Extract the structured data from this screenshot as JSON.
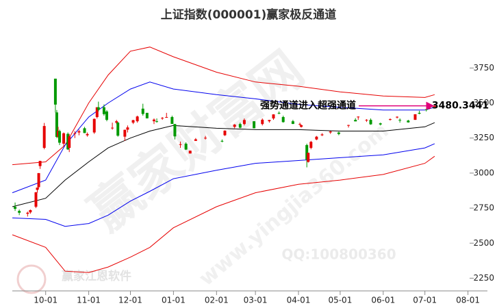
{
  "chart_data": {
    "type": "candlestick",
    "title": "上证指数(000001)赢家极反通道",
    "xlim": [
      "09-07",
      "08-15"
    ],
    "xticks": [
      "10-01",
      "11-01",
      "12-01",
      "01-01",
      "02-01",
      "03-01",
      "04-01",
      "05-01",
      "06-01",
      "07-01",
      "08-01"
    ],
    "ylim": [
      2130,
      4040
    ],
    "yticks": [
      2250,
      2500,
      2750,
      3000,
      3250,
      3500,
      3750
    ],
    "up_color": "#e60000",
    "down_color": "#009900",
    "candles": {
      "x": [
        "09-09",
        "09-12",
        "09-18",
        "09-20",
        "09-24",
        "09-25",
        "09-26",
        "09-27",
        "09-30",
        "10-08",
        "10-09",
        "10-10",
        "10-11",
        "10-14",
        "10-17",
        "10-18",
        "10-22",
        "10-25",
        "10-29",
        "10-31",
        "11-05",
        "11-07",
        "11-08",
        "11-12",
        "11-14",
        "11-18",
        "11-21",
        "11-22",
        "11-27",
        "11-29",
        "12-03",
        "12-06",
        "12-10",
        "12-13",
        "12-18",
        "12-20",
        "12-24",
        "12-27",
        "12-31",
        "01-02",
        "01-06",
        "01-10",
        "01-13",
        "01-17",
        "01-24",
        "02-05",
        "02-07",
        "02-14",
        "02-18",
        "02-21",
        "02-28",
        "03-06",
        "03-11",
        "03-14",
        "03-18",
        "03-21",
        "03-28",
        "04-02",
        "04-03",
        "04-07",
        "04-08",
        "04-10",
        "04-14",
        "04-18",
        "04-24",
        "04-30",
        "05-07",
        "05-12",
        "05-14",
        "05-20",
        "05-23",
        "05-30",
        "06-06",
        "06-11",
        "06-13",
        "06-19",
        "06-24",
        "06-27",
        "07-02",
        "07-04",
        "07-08"
      ],
      "open": [
        2760,
        2730,
        2710,
        2720,
        2760,
        2880,
        2900,
        3050,
        3180,
        3674,
        3433,
        3260,
        3300,
        3210,
        3280,
        3180,
        3280,
        3290,
        3320,
        3270,
        3290,
        3400,
        3470,
        3470,
        3440,
        3320,
        3360,
        3360,
        3260,
        3310,
        3360,
        3370,
        3460,
        3430,
        3370,
        3370,
        3390,
        3400,
        3400,
        3350,
        3205,
        3210,
        3140,
        3230,
        3250,
        3230,
        3270,
        3330,
        3350,
        3350,
        3370,
        3350,
        3370,
        3390,
        3430,
        3400,
        3370,
        3350,
        3330,
        3200,
        3080,
        3180,
        3240,
        3270,
        3290,
        3290,
        3340,
        3380,
        3400,
        3380,
        3380,
        3355,
        3380,
        3400,
        3380,
        3375,
        3380,
        3430,
        3455,
        3460,
        3473
      ],
      "high": [
        2790,
        2740,
        2725,
        2740,
        2865,
        2900,
        3000,
        3088,
        3358,
        3674,
        3450,
        3330,
        3310,
        3290,
        3290,
        3280,
        3300,
        3310,
        3330,
        3290,
        3390,
        3470,
        3510,
        3490,
        3450,
        3360,
        3380,
        3365,
        3310,
        3340,
        3380,
        3410,
        3495,
        3430,
        3390,
        3390,
        3400,
        3430,
        3410,
        3350,
        3225,
        3220,
        3160,
        3250,
        3265,
        3240,
        3305,
        3350,
        3360,
        3390,
        3370,
        3390,
        3380,
        3420,
        3440,
        3410,
        3380,
        3360,
        3345,
        3210,
        3145,
        3230,
        3265,
        3285,
        3300,
        3295,
        3345,
        3392,
        3405,
        3385,
        3390,
        3360,
        3390,
        3405,
        3390,
        3380,
        3420,
        3445,
        3460,
        3475,
        3490
      ],
      "low": [
        2730,
        2700,
        2690,
        2710,
        2750,
        2860,
        2890,
        3030,
        3170,
        3432,
        3250,
        3250,
        3200,
        3190,
        3165,
        3150,
        3250,
        3270,
        3285,
        3260,
        3280,
        3390,
        3440,
        3410,
        3370,
        3310,
        3350,
        3260,
        3230,
        3290,
        3350,
        3360,
        3410,
        3390,
        3350,
        3360,
        3380,
        3395,
        3351,
        3240,
        3180,
        3165,
        3140,
        3230,
        3240,
        3220,
        3265,
        3320,
        3320,
        3340,
        3320,
        3340,
        3360,
        3380,
        3420,
        3360,
        3350,
        3340,
        3325,
        3041,
        3075,
        3170,
        3235,
        3265,
        3280,
        3270,
        3325,
        3370,
        3380,
        3365,
        3345,
        3340,
        3375,
        3390,
        3360,
        3360,
        3380,
        3420,
        3440,
        3455,
        3465
      ],
      "close": [
        2745,
        2717,
        2717,
        2736,
        2863,
        2896,
        3000,
        3087,
        3336,
        3489,
        3258,
        3301,
        3217,
        3284,
        3169,
        3261,
        3285,
        3299,
        3286,
        3279,
        3387,
        3470,
        3452,
        3421,
        3380,
        3324,
        3370,
        3267,
        3309,
        3326,
        3378,
        3404,
        3422,
        3391,
        3382,
        3368,
        3394,
        3400,
        3351,
        3262,
        3206,
        3168,
        3160,
        3241,
        3252,
        3229,
        3303,
        3346,
        3324,
        3379,
        3320,
        3381,
        3379,
        3419,
        3429,
        3364,
        3351,
        3350,
        3342,
        3096,
        3145,
        3223,
        3260,
        3276,
        3297,
        3279,
        3343,
        3369,
        3403,
        3380,
        3348,
        3347,
        3385,
        3402,
        3377,
        3362,
        3420,
        3424,
        3454,
        3473,
        3480
      ]
    },
    "series": [
      {
        "color": "#e60000",
        "x": [
          "09-07",
          "10-01",
          "10-15",
          "11-01",
          "11-15",
          "12-01",
          "12-15",
          "01-01",
          "02-01",
          "03-01",
          "04-01",
          "05-01",
          "06-01",
          "07-01",
          "07-08"
        ],
        "values": [
          3060,
          3080,
          3200,
          3500,
          3700,
          3870,
          3900,
          3830,
          3720,
          3650,
          3620,
          3580,
          3550,
          3540,
          3560
        ]
      },
      {
        "color": "#0000ee",
        "x": [
          "09-07",
          "10-01",
          "10-15",
          "11-01",
          "11-15",
          "12-01",
          "12-15",
          "01-01",
          "02-01",
          "03-01",
          "04-01",
          "05-01",
          "06-01",
          "07-01",
          "07-08"
        ],
        "values": [
          2860,
          2950,
          3200,
          3400,
          3500,
          3600,
          3650,
          3600,
          3560,
          3530,
          3490,
          3470,
          3450,
          3450,
          3470
        ]
      },
      {
        "color": "#000000",
        "x": [
          "09-07",
          "10-01",
          "10-15",
          "11-01",
          "11-15",
          "12-01",
          "12-15",
          "01-01",
          "02-01",
          "03-01",
          "04-01",
          "05-01",
          "06-01",
          "07-01",
          "07-08"
        ],
        "values": [
          2760,
          2820,
          2950,
          3080,
          3180,
          3250,
          3300,
          3340,
          3320,
          3310,
          3310,
          3300,
          3300,
          3330,
          3360
        ]
      },
      {
        "color": "#0000ee",
        "x": [
          "09-07",
          "10-01",
          "10-15",
          "11-01",
          "11-15",
          "12-01",
          "12-15",
          "01-01",
          "02-01",
          "03-01",
          "04-01",
          "05-01",
          "06-01",
          "07-01",
          "07-08"
        ],
        "values": [
          2680,
          2670,
          2620,
          2640,
          2700,
          2800,
          2870,
          2960,
          3020,
          3070,
          3090,
          3110,
          3130,
          3180,
          3210
        ]
      },
      {
        "color": "#e60000",
        "x": [
          "09-07",
          "10-01",
          "10-15",
          "11-01",
          "11-15",
          "12-01",
          "12-15",
          "01-01",
          "02-01",
          "03-01",
          "04-01",
          "05-01",
          "06-01",
          "07-01",
          "07-08"
        ],
        "values": [
          2560,
          2470,
          2300,
          2290,
          2330,
          2400,
          2470,
          2610,
          2760,
          2860,
          2920,
          2950,
          2990,
          3070,
          3120
        ]
      }
    ],
    "annotation": {
      "text": "强势通道进入超强通道",
      "value": 3480.3441,
      "x": "07-08"
    },
    "watermarks": [
      "赢家财富网",
      "www.yingjia360.com",
      "QQ:100800360",
      "赢家江恩软件"
    ]
  }
}
